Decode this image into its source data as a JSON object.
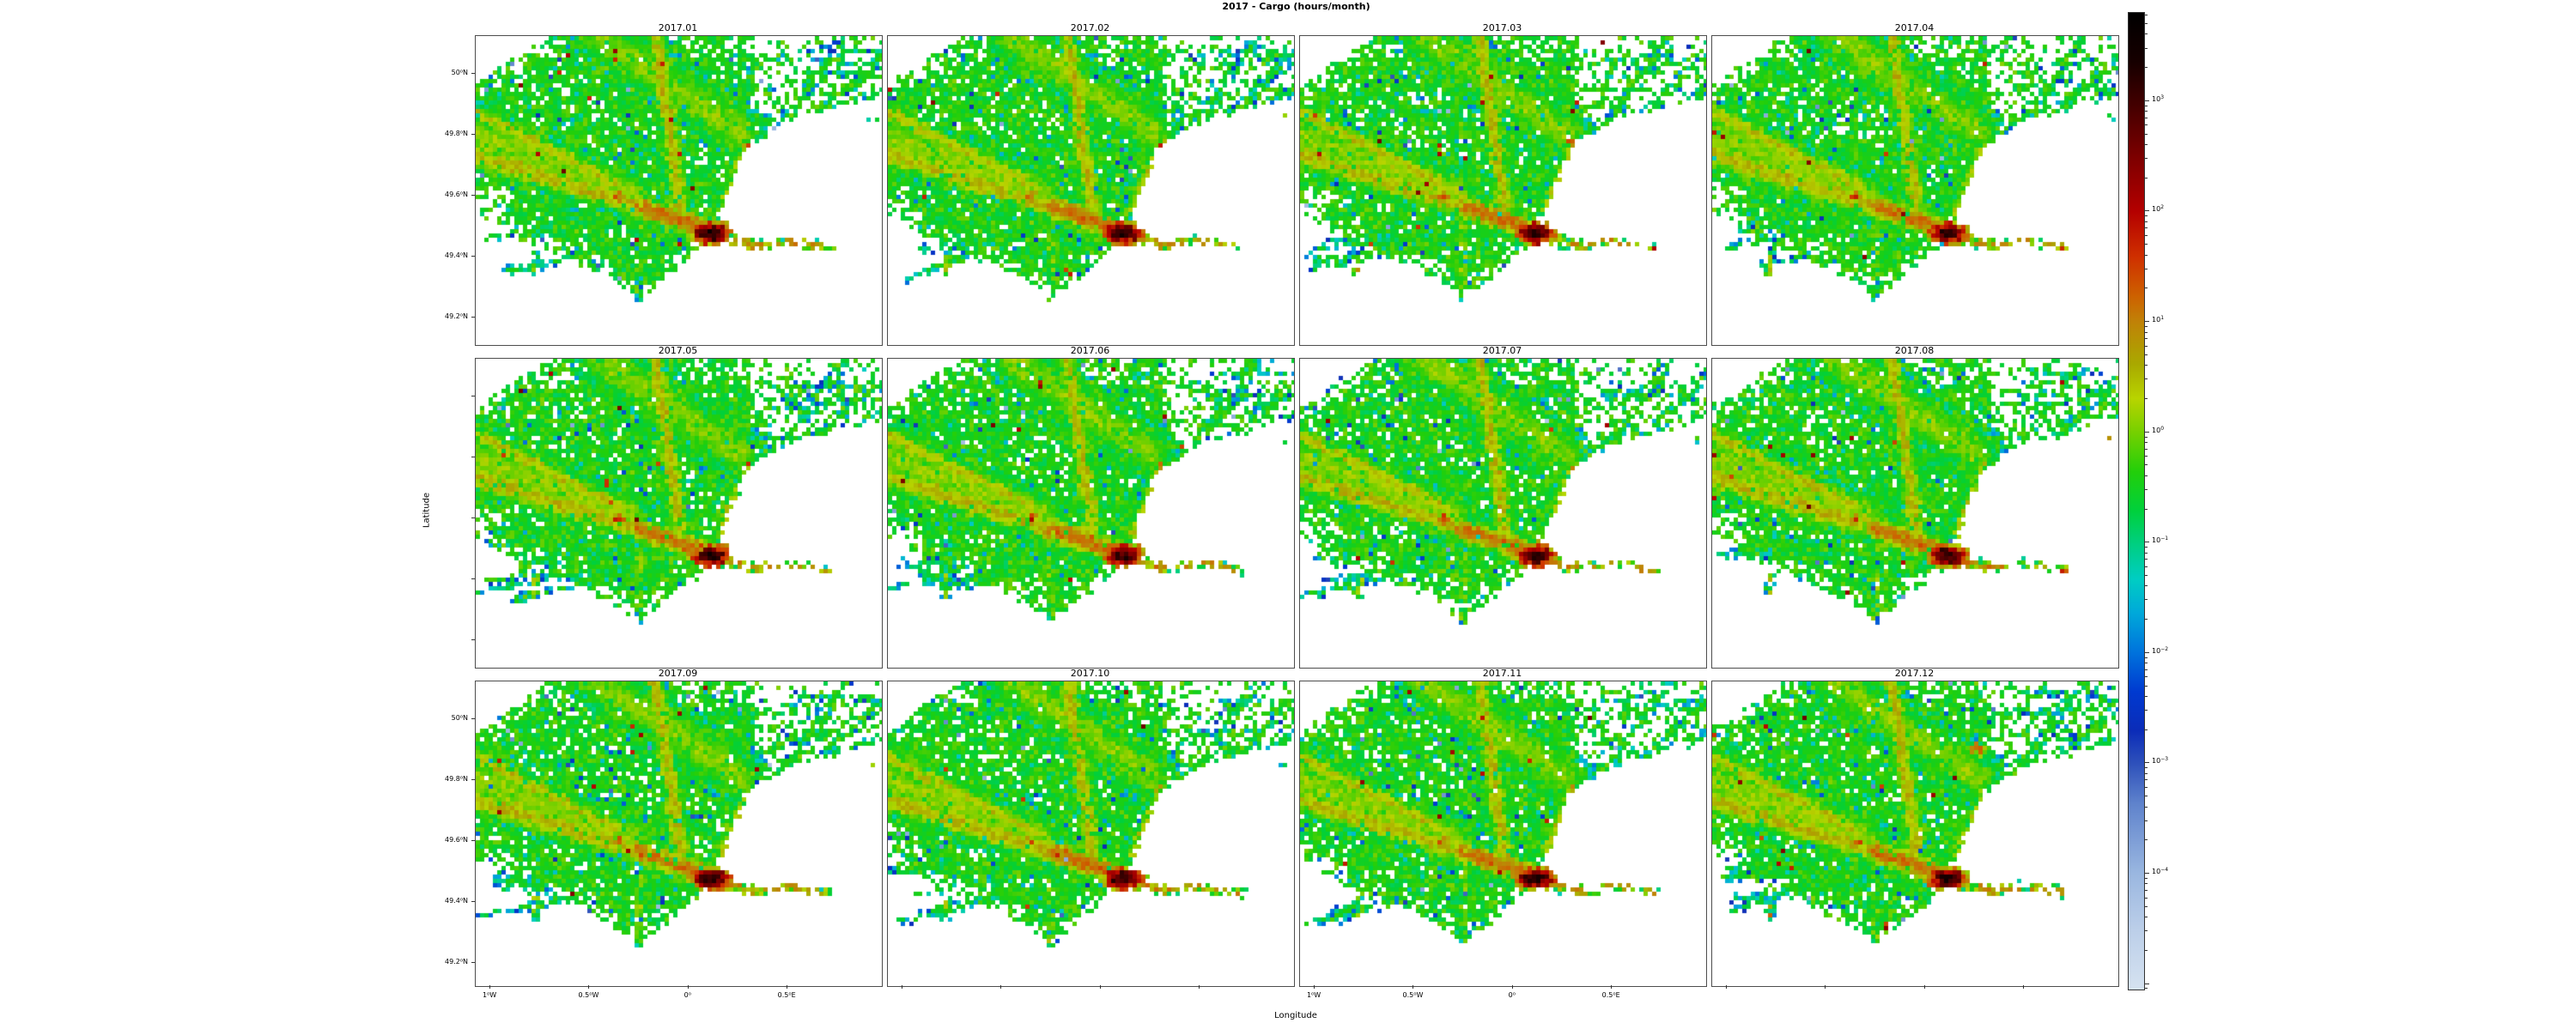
{
  "figure": {
    "title": "2017 - Cargo (hours/month)",
    "xlabel": "Longitude",
    "ylabel": "Latitude"
  },
  "chart_data": {
    "type": "heatmap",
    "title": "2017 - Cargo (hours/month)",
    "xlabel": "Longitude",
    "ylabel": "Latitude",
    "value_unit": "hours/month",
    "color_scale": "log10",
    "grid": {
      "rows": 3,
      "cols": 4
    },
    "subplots": [
      "2017.01",
      "2017.02",
      "2017.03",
      "2017.04",
      "2017.05",
      "2017.06",
      "2017.07",
      "2017.08",
      "2017.09",
      "2017.10",
      "2017.11",
      "2017.12"
    ],
    "lon_range": [
      -1.074,
      0.976
    ],
    "lat_range": [
      49.11,
      50.124
    ],
    "x_ticks": [
      {
        "value": -1.0,
        "label": "1⁰W"
      },
      {
        "value": -0.5,
        "label": "0.5⁰W"
      },
      {
        "value": 0.0,
        "label": "0⁰"
      },
      {
        "value": 0.5,
        "label": "0.5⁰E"
      }
    ],
    "y_ticks": [
      {
        "value": 50.0,
        "label": "50⁰N"
      },
      {
        "value": 49.8,
        "label": "49.8⁰N"
      },
      {
        "value": 49.6,
        "label": "49.6⁰N"
      },
      {
        "value": 49.4,
        "label": "49.4⁰N"
      },
      {
        "value": 49.2,
        "label": "49.2⁰N"
      }
    ],
    "x_labeled_cols": [
      0,
      2
    ],
    "y_labeled_rows": [
      0,
      2
    ],
    "colorbar": {
      "label_base": "10",
      "labeled_exponents": [
        3,
        2,
        1,
        0,
        -1,
        -2,
        -3,
        -4
      ],
      "top_exponent": 3.8,
      "decades_span": 8.85,
      "gradient": [
        [
          0.0,
          "#000000"
        ],
        [
          0.05,
          "#160000"
        ],
        [
          0.0905,
          "#3f0000"
        ],
        [
          0.15,
          "#7f0000"
        ],
        [
          0.2035,
          "#b40000"
        ],
        [
          0.25,
          "#cf3000"
        ],
        [
          0.29,
          "#cd6100"
        ],
        [
          0.3165,
          "#c08207"
        ],
        [
          0.36,
          "#a9a900"
        ],
        [
          0.395,
          "#b8d400"
        ],
        [
          0.4295,
          "#76d000"
        ],
        [
          0.47,
          "#22cf0a"
        ],
        [
          0.51,
          "#00d03c"
        ],
        [
          0.5425,
          "#00cf7e"
        ],
        [
          0.58,
          "#00cdc3"
        ],
        [
          0.615,
          "#00a8da"
        ],
        [
          0.6555,
          "#0072dc"
        ],
        [
          0.695,
          "#003ad0"
        ],
        [
          0.735,
          "#0b2cb8"
        ],
        [
          0.7685,
          "#2e51bb"
        ],
        [
          0.81,
          "#5f83cc"
        ],
        [
          0.8815,
          "#9ab7e0"
        ],
        [
          0.94,
          "#bccfe9"
        ],
        [
          1.0,
          "#d5e2f0"
        ]
      ]
    },
    "generation": {
      "lat_aspect": 1.55,
      "topcut": [
        [
          -1.074,
          49.965
        ],
        [
          -0.7,
          50.124
        ]
      ],
      "bottom": [
        [
          -1.074,
          49.545
        ],
        [
          -0.85,
          49.455
        ],
        [
          -0.6,
          49.395
        ],
        [
          -0.38,
          49.325
        ],
        [
          -0.255,
          49.272
        ],
        [
          -0.17,
          49.3
        ],
        [
          -0.05,
          49.365
        ],
        [
          0.03,
          49.405
        ],
        [
          0.105,
          49.45
        ]
      ],
      "caux": [
        [
          0.105,
          49.455
        ],
        [
          0.15,
          49.52
        ],
        [
          0.22,
          49.64
        ],
        [
          0.295,
          49.765
        ],
        [
          0.5,
          49.845
        ],
        [
          0.71,
          49.878
        ],
        [
          0.976,
          49.928
        ]
      ],
      "lanes": [
        {
          "p": [
            [
              -1.074,
              49.735
            ],
            [
              -0.25,
              49.565
            ]
          ],
          "w": 0.05,
          "e": 0.55
        },
        {
          "p": [
            [
              -1.074,
              49.8
            ],
            [
              -0.3,
              49.615
            ]
          ],
          "w": 0.085,
          "e": 0.12
        },
        {
          "p": [
            [
              -1.074,
              49.875
            ],
            [
              -0.35,
              49.638
            ]
          ],
          "w": 0.034,
          "e": 0.45
        },
        {
          "p": [
            [
              -0.25,
              49.565
            ],
            [
              0.06,
              49.497
            ]
          ],
          "w": 0.042,
          "e": 1.15
        },
        {
          "p": [
            [
              -0.165,
              50.124
            ],
            [
              -0.04,
              49.565
            ]
          ],
          "w": 0.036,
          "e": 0.55
        },
        {
          "p": [
            [
              -0.45,
              50.124
            ],
            [
              0.26,
              49.81
            ]
          ],
          "w": 0.1,
          "e": 0.05,
          "drop": 0.15
        },
        {
          "p": [
            [
              0.16,
              49.55
            ],
            [
              0.295,
              49.762
            ]
          ],
          "w": 0.024,
          "e": 0.3
        },
        {
          "p": [
            [
              0.17,
              49.56
            ],
            [
              0.976,
              50.06
            ]
          ],
          "w": 0.016,
          "e": -0.35,
          "drop": 0.3
        },
        {
          "p": [
            [
              0.17,
              49.56
            ],
            [
              0.8,
              50.124
            ]
          ],
          "w": 0.016,
          "e": -0.3,
          "drop": 0.3
        },
        {
          "p": [
            [
              0.22,
              49.62
            ],
            [
              0.976,
              49.95
            ]
          ],
          "w": 0.014,
          "e": -0.55,
          "drop": 0.35
        },
        {
          "p": [
            [
              0.13,
              49.468
            ],
            [
              0.33,
              49.437
            ]
          ],
          "w": 0.016,
          "e": 1.05,
          "drop": 0.1,
          "free": 1
        },
        {
          "p": [
            [
              0.33,
              49.437
            ],
            [
              0.5,
              49.452
            ],
            [
              0.71,
              49.432
            ]
          ],
          "w": 0.013,
          "e": 0.95,
          "drop": 0.4,
          "free": 1
        },
        {
          "p": [
            [
              -0.25,
              49.5
            ],
            [
              -0.25,
              49.268
            ]
          ],
          "w": 0.012,
          "e": 0.05,
          "drop": 0.28,
          "free": 1
        },
        {
          "p": [
            [
              -0.78,
              49.352
            ],
            [
              -0.775,
              49.412
            ]
          ],
          "w": 0.012,
          "e": 0.35,
          "drop": 0.1,
          "free": 1
        }
      ],
      "hotspots": [
        {
          "c": [
            0.115,
            49.478
          ],
          "rx": 0.07,
          "ry": 0.026,
          "peak": 3.3,
          "free": 1
        },
        {
          "c": [
            -0.35,
            49.6
          ],
          "rx": 0.02,
          "ry": 0.012,
          "peak": 1.9
        },
        {
          "c": [
            0.3,
            49.77
          ],
          "rx": 0.012,
          "ry": 0.008,
          "peak": 1.7,
          "free": 1
        },
        {
          "c": [
            0.705,
            49.43
          ],
          "rx": 0.007,
          "ry": 0.005,
          "peak": 2.0,
          "free": 1
        },
        {
          "c": [
            -0.78,
            49.355
          ],
          "rx": 0.007,
          "ry": 0.005,
          "peak": 1.5,
          "free": 1
        },
        {
          "c": [
            -0.25,
            49.272
          ],
          "rx": 0.007,
          "ry": 0.005,
          "peak": 0.9,
          "free": 1
        },
        {
          "c": [
            0.93,
            49.855
          ],
          "rx": 0.007,
          "ry": 0.005,
          "peak": 1.6,
          "free": 1
        }
      ],
      "month_extras": {
        "2017.06": {
          "loop": [
            [
              -1.05,
              49.6
            ],
            [
              -0.42,
              49.575
            ],
            [
              -0.28,
              49.43
            ],
            [
              -0.7,
              49.375
            ],
            [
              -1.02,
              49.46
            ]
          ]
        },
        "2017.12": {
          "spot": {
            "c": [
              0.27,
              49.9
            ],
            "rx": 0.035,
            "ry": 0.018,
            "peak": 1.5
          }
        }
      }
    }
  }
}
